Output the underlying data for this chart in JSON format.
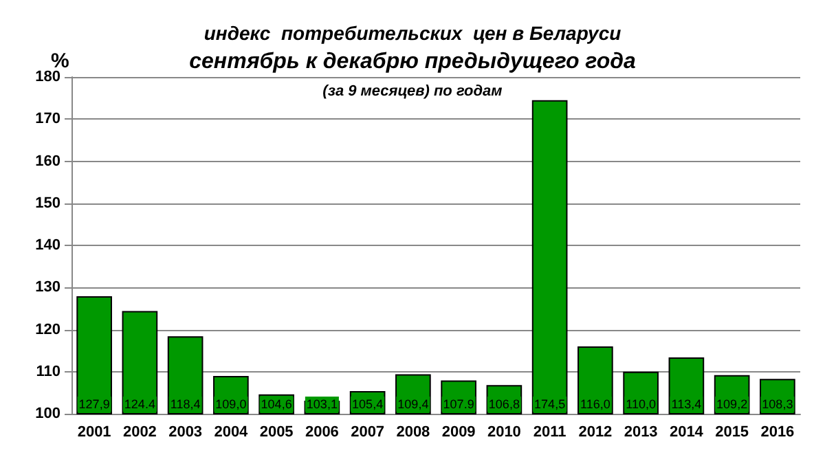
{
  "chart_data": {
    "type": "bar",
    "title": "индекс  потребительских  цен в Беларуси",
    "subtitle": "сентябрь к декабрю предыдущего года",
    "annotations": [
      "(за 9 месяцев) по годам"
    ],
    "ylabel": "%",
    "categories": [
      "2001",
      "2002",
      "2003",
      "2004",
      "2005",
      "2006",
      "2007",
      "2008",
      "2009",
      "2010",
      "2011",
      "2012",
      "2013",
      "2014",
      "2015",
      "2016"
    ],
    "values": [
      127.9,
      124.4,
      118.4,
      109.0,
      104.6,
      103.1,
      105.4,
      109.4,
      107.9,
      106.8,
      174.5,
      116.0,
      110.0,
      113.4,
      109.2,
      108.3
    ],
    "value_labels": [
      "127,9",
      "124.4",
      "118,4",
      "109,0",
      "104,6",
      "103,1",
      "105,4",
      "109,4",
      "107.9",
      "106,8",
      "174,5",
      "116,0",
      "110,0",
      "113,4",
      "109,2",
      "108,3"
    ],
    "color": "#009900",
    "ylim": [
      100,
      180
    ],
    "yticks": [
      100,
      110,
      120,
      130,
      140,
      150,
      160,
      170,
      180
    ],
    "grid": "y"
  }
}
